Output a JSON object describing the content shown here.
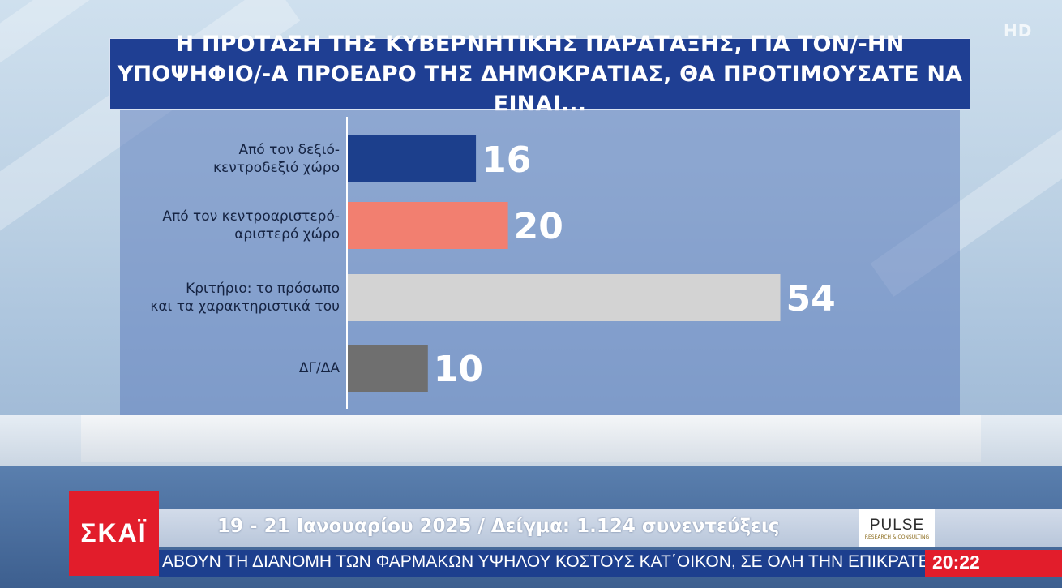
{
  "title": {
    "line1": "Η ΠΡΟΤΑΣΗ ΤΗΣ ΚΥΒΕΡΝΗΤΙΚΗΣ ΠΑΡΑΤΑΞΗΣ, ΓΙΑ ΤΟΝ/-ΗΝ",
    "line2": "ΥΠΟΨΗΦΙΟ/-Α ΠΡΟΕΔΡΟ ΤΗΣ ΔΗΜΟΚΡΑΤΙΑΣ, ΘΑ ΠΡΟΤΙΜΟΥΣΑΤΕ ΝΑ ΕΙΝΑΙ..."
  },
  "hd_logo": "HD",
  "chart_data": {
    "type": "bar",
    "orientation": "horizontal",
    "title": "Η ΠΡΟΤΑΣΗ ΤΗΣ ΚΥΒΕΡΝΗΤΙΚΗΣ ΠΑΡΑΤΑΞΗΣ, ΓΙΑ ΤΟΝ/-ΗΝ ΥΠΟΨΗΦΙΟ/-Α ΠΡΟΕΔΡΟ ΤΗΣ ΔΗΜΟΚΡΑΤΙΑΣ, ΘΑ ΠΡΟΤΙΜΟΥΣΑΤΕ ΝΑ ΕΙΝΑΙ...",
    "categories": [
      [
        "Από τον δεξιό-",
        "κεντροδεξιό χώρο"
      ],
      [
        "Από τον κεντροαριστερό-",
        "αριστερό χώρο"
      ],
      [
        "Κριτήριο: το πρόσωπο",
        "και τα χαρακτηριστικά του"
      ],
      [
        "ΔΓ/ΔΑ"
      ]
    ],
    "values": [
      16,
      20,
      54,
      10
    ],
    "colors": [
      "#1c3f8c",
      "#f27f70",
      "#d3d3d3",
      "#6f6f6f"
    ],
    "xlim": [
      0,
      60
    ],
    "grid": false,
    "legend": "none"
  },
  "footer": {
    "channel_logo": "ΣΚΑΪ",
    "info": "19 - 21 Ιανουαρίου 2025 / Δείγμα: 1.124 συνεντεύξεις",
    "pollster_logo": "PULSE",
    "pollster_sub": "RESEARCH & CONSULTING",
    "ticker": "ΑΒΟΥΝ ΤΗ ΔΙΑΝΟΜΗ ΤΩΝ ΦΑΡΜΑΚΩΝ ΥΨΗΛΟΥ ΚΟΣΤΟΥΣ ΚΑΤ΄ΟΙΚΟΝ, ΣΕ ΟΛΗ ΤΗΝ ΕΠΙΚΡΑΤΕ",
    "clock": "20:22"
  }
}
